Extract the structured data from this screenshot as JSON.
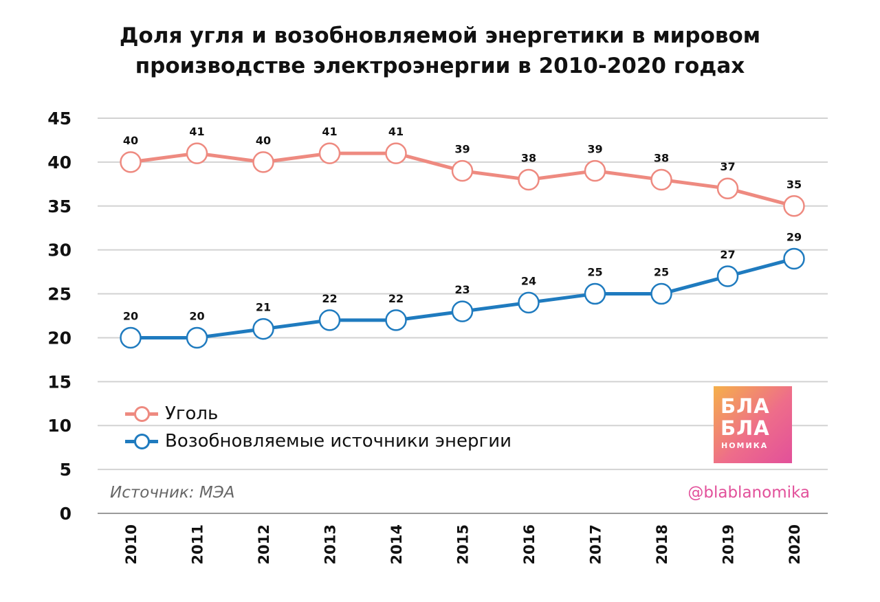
{
  "title_line1": "Доля угля и возобновляемой энергетики в мировом",
  "title_line2": "производстве электроэнергии в 2010-2020 годах",
  "source": "Источник: МЭА",
  "handle": "@blablanomika",
  "logo": {
    "line1": "БЛА",
    "line2": "БЛА",
    "line3": "НОМИКА"
  },
  "chart_data": {
    "type": "line",
    "title": "Доля угля и возобновляемой энергетики в мировом производстве электроэнергии в 2010-2020 годах",
    "xlabel": "",
    "ylabel": "",
    "categories": [
      "2010",
      "2011",
      "2012",
      "2013",
      "2014",
      "2015",
      "2016",
      "2017",
      "2018",
      "2019",
      "2020"
    ],
    "ylim": [
      0,
      45
    ],
    "yticks": [
      0,
      5,
      10,
      15,
      20,
      25,
      30,
      35,
      40,
      45
    ],
    "grid": "horizontal",
    "legend_position": "bottom-left",
    "series": [
      {
        "name": "Уголь",
        "color": "#ee8a80",
        "values": [
          40,
          41,
          40,
          41,
          41,
          39,
          38,
          39,
          38,
          37,
          35
        ]
      },
      {
        "name": "Возобновляемые источники энергии",
        "color": "#1f7bbf",
        "values": [
          20,
          20,
          21,
          22,
          22,
          23,
          24,
          25,
          25,
          27,
          29
        ]
      }
    ]
  }
}
